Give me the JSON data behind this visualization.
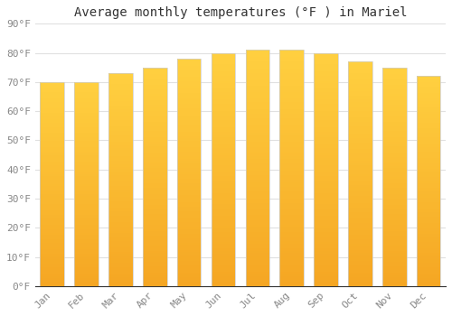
{
  "title": "Average monthly temperatures (°F ) in Mariel",
  "months": [
    "Jan",
    "Feb",
    "Mar",
    "Apr",
    "May",
    "Jun",
    "Jul",
    "Aug",
    "Sep",
    "Oct",
    "Nov",
    "Dec"
  ],
  "values": [
    70,
    70,
    73,
    75,
    78,
    80,
    81,
    81,
    80,
    77,
    75,
    72
  ],
  "bar_color_top": "#FFD040",
  "bar_color_bottom": "#F5A623",
  "bar_edge_color": "#CCCCCC",
  "background_color": "#FFFFFF",
  "plot_bg_color": "#FFFFFF",
  "grid_color": "#E0E0E0",
  "tick_label_color": "#888888",
  "title_color": "#333333",
  "title_fontsize": 10,
  "tick_fontsize": 8,
  "ylim": [
    0,
    90
  ],
  "yticks": [
    0,
    10,
    20,
    30,
    40,
    50,
    60,
    70,
    80,
    90
  ]
}
